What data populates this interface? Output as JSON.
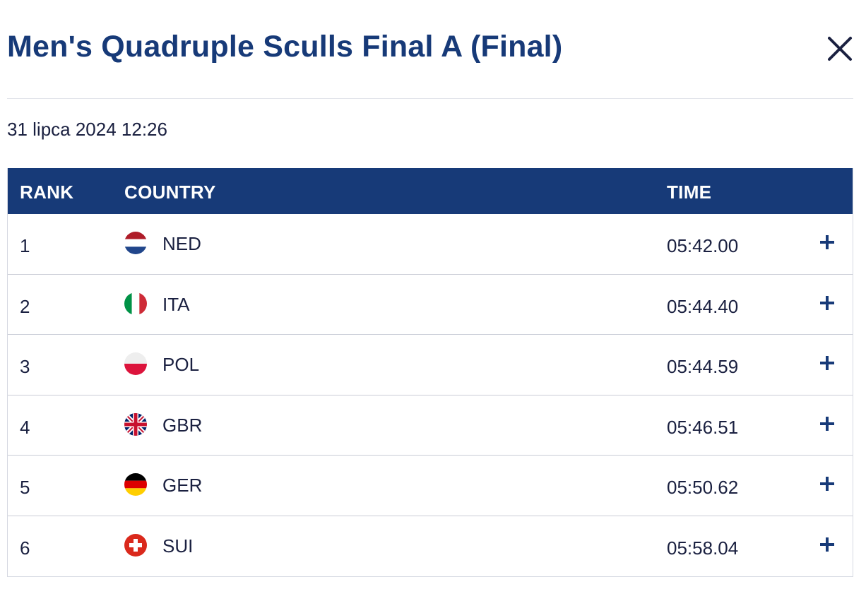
{
  "modal": {
    "title": "Men's Quadruple Sculls Final A (Final)",
    "close_icon": "close-icon",
    "date": "31 lipca 2024 12:26"
  },
  "table": {
    "headers": {
      "rank": "RANK",
      "country": "COUNTRY",
      "time": "TIME"
    },
    "rows": [
      {
        "rank": "1",
        "country": "NED",
        "flag": "flag-netherlands",
        "time": "05:42.00",
        "expand_icon": "plus-icon"
      },
      {
        "rank": "2",
        "country": "ITA",
        "flag": "flag-italy",
        "time": "05:44.40",
        "expand_icon": "plus-icon"
      },
      {
        "rank": "3",
        "country": "POL",
        "flag": "flag-poland",
        "time": "05:44.59",
        "expand_icon": "plus-icon"
      },
      {
        "rank": "4",
        "country": "GBR",
        "flag": "flag-great-britain",
        "time": "05:46.51",
        "expand_icon": "plus-icon"
      },
      {
        "rank": "5",
        "country": "GER",
        "flag": "flag-germany",
        "time": "05:50.62",
        "expand_icon": "plus-icon"
      },
      {
        "rank": "6",
        "country": "SUI",
        "flag": "flag-switzerland",
        "time": "05:58.04",
        "expand_icon": "plus-icon"
      }
    ]
  },
  "colors": {
    "title": "#173a78",
    "header_bg": "#173a78",
    "header_text": "#ffffff",
    "body_text": "#1a2040",
    "divider": "#e2e4ea",
    "row_border": "#c9ccd6"
  }
}
